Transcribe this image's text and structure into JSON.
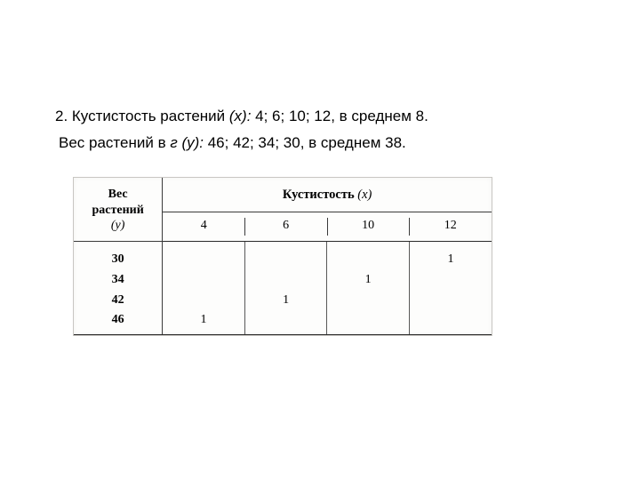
{
  "problem": {
    "line1_prefix": "2. Кустистость растений ",
    "line1_var": "(х):",
    "line1_suffix": " 4; 6; 10; 12, в среднем 8.",
    "line2_prefix": "Вес растений в ",
    "line2_var": "г (у):",
    "line2_suffix": " 46; 42; 34; 30, в среднем 38."
  },
  "table": {
    "header_y_l1": "Вес",
    "header_y_l2": "растений",
    "header_y_l3": "(y)",
    "header_x_prefix": "Кустистость ",
    "header_x_var": "(x)",
    "x_values": [
      "4",
      "6",
      "10",
      "12"
    ],
    "rows": [
      {
        "y": "30",
        "cells": [
          "",
          "",
          "",
          "1"
        ]
      },
      {
        "y": "34",
        "cells": [
          "",
          "",
          "1",
          ""
        ]
      },
      {
        "y": "42",
        "cells": [
          "",
          "1",
          "",
          ""
        ]
      },
      {
        "y": "46",
        "cells": [
          "1",
          "",
          "",
          ""
        ]
      }
    ]
  },
  "colors": {
    "text": "#000000",
    "border": "#3a3a3a",
    "heavy_border": "#2a2a2a",
    "table_bg": "#fdfdfc",
    "table_edge": "#c8c6c2"
  },
  "typography": {
    "body_fontsize": 17,
    "table_fontsize": 14,
    "body_family": "Arial",
    "table_family": "Times New Roman"
  }
}
